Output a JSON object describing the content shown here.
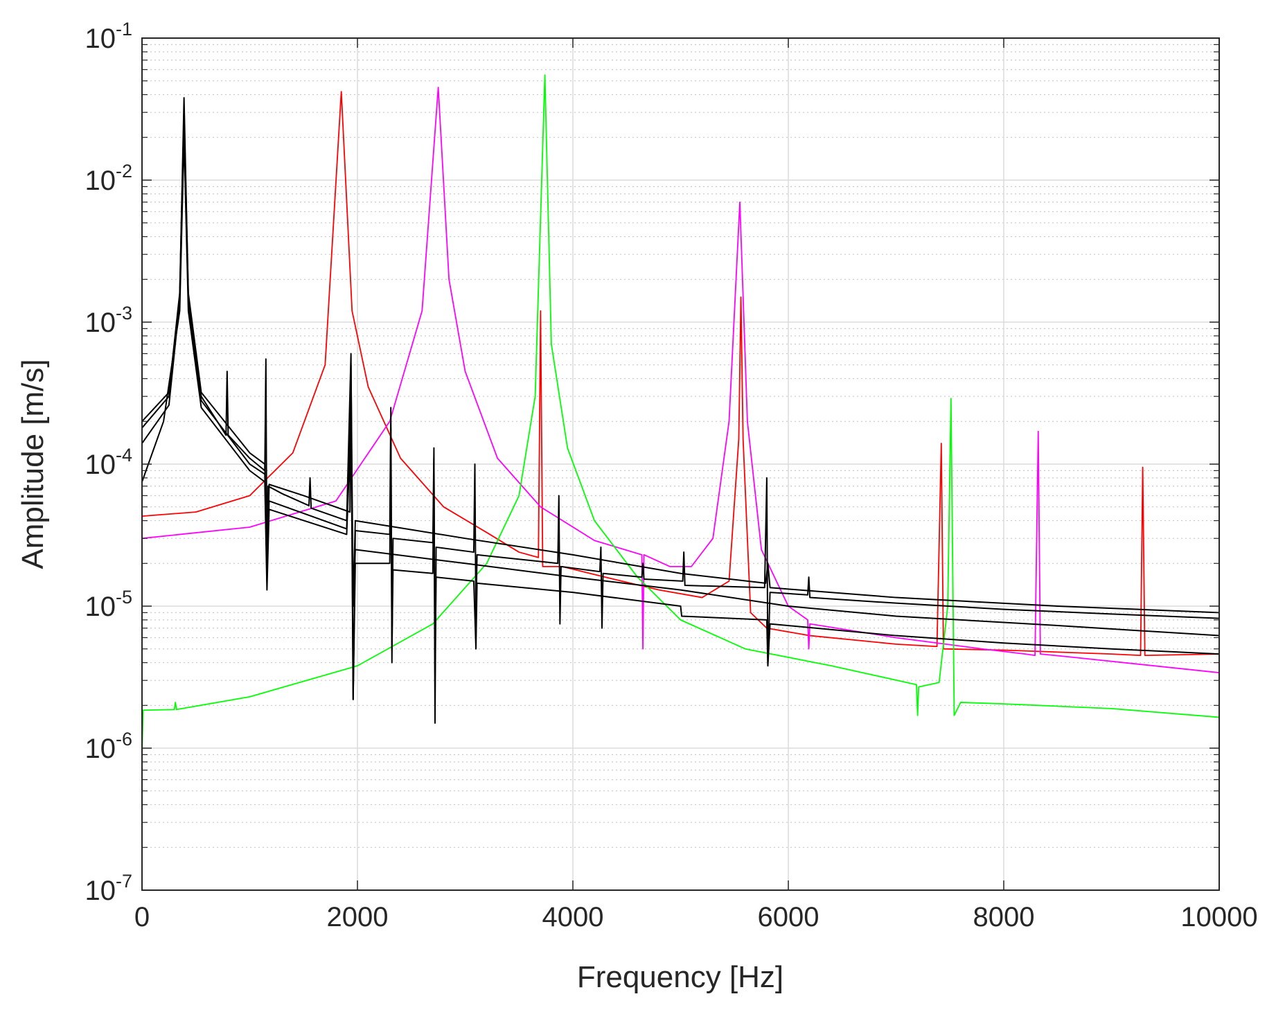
{
  "chart_data": {
    "type": "line",
    "title": "",
    "xlabel": "Frequency [Hz]",
    "ylabel": "Amplitude [m/s]",
    "xscale": "linear",
    "yscale": "log",
    "xlim": [
      0,
      10000
    ],
    "ylim": [
      1e-07,
      0.1
    ],
    "grid": true,
    "minor_grid": true,
    "legend": "none",
    "x_ticks": [
      {
        "value": 0,
        "label": "0"
      },
      {
        "value": 2000,
        "label": "2000"
      },
      {
        "value": 4000,
        "label": "4000"
      },
      {
        "value": 6000,
        "label": "6000"
      },
      {
        "value": 8000,
        "label": "8000"
      },
      {
        "value": 10000,
        "label": "10000"
      }
    ],
    "y_ticks": [
      {
        "value": 1e-07,
        "base": "10",
        "exp": "-7"
      },
      {
        "value": 1e-06,
        "base": "10",
        "exp": "-6"
      },
      {
        "value": 1e-05,
        "base": "10",
        "exp": "-5"
      },
      {
        "value": 0.0001,
        "base": "10",
        "exp": "-4"
      },
      {
        "value": 0.001,
        "base": "10",
        "exp": "-3"
      },
      {
        "value": 0.01,
        "base": "10",
        "exp": "-2"
      },
      {
        "value": 0.1,
        "base": "10",
        "exp": "-1"
      }
    ],
    "series": [
      {
        "name": "red response",
        "color": "#ff0000",
        "points": [
          [
            0,
            4.3e-05
          ],
          [
            500,
            4.6e-05
          ],
          [
            1000,
            6e-05
          ],
          [
            1400,
            0.00012
          ],
          [
            1700,
            0.0005
          ],
          [
            1850,
            0.042
          ],
          [
            1950,
            0.0012
          ],
          [
            2100,
            0.00035
          ],
          [
            2400,
            0.00011
          ],
          [
            2800,
            5e-05
          ],
          [
            3200,
            3.3e-05
          ],
          [
            3500,
            2.4e-05
          ],
          [
            3680,
            2.2e-05
          ],
          [
            3700,
            0.0012
          ],
          [
            3720,
            1.9e-05
          ],
          [
            3900,
            1.9e-05
          ],
          [
            4300,
            1.6e-05
          ],
          [
            4800,
            1.3e-05
          ],
          [
            5200,
            1.15e-05
          ],
          [
            5450,
            1.5e-05
          ],
          [
            5540,
            0.00015
          ],
          [
            5560,
            0.0015
          ],
          [
            5580,
            0.00015
          ],
          [
            5650,
            9e-06
          ],
          [
            5800,
            7e-06
          ],
          [
            6200,
            6.2e-06
          ],
          [
            7000,
            5.4e-06
          ],
          [
            7380,
            5.2e-06
          ],
          [
            7420,
            0.00014
          ],
          [
            7440,
            5e-06
          ],
          [
            8000,
            4.9e-06
          ],
          [
            9000,
            4.6e-06
          ],
          [
            9270,
            4.5e-06
          ],
          [
            9290,
            9.5e-05
          ],
          [
            9310,
            4.5e-06
          ],
          [
            10000,
            4.6e-06
          ]
        ]
      },
      {
        "name": "magenta response",
        "color": "#ff00ff",
        "points": [
          [
            0,
            3e-05
          ],
          [
            1000,
            3.6e-05
          ],
          [
            1800,
            5.5e-05
          ],
          [
            2300,
            0.0002
          ],
          [
            2600,
            0.0012
          ],
          [
            2750,
            0.045
          ],
          [
            2850,
            0.002
          ],
          [
            3000,
            0.00045
          ],
          [
            3300,
            0.00011
          ],
          [
            3700,
            5e-05
          ],
          [
            4200,
            2.9e-05
          ],
          [
            4640,
            2.3e-05
          ],
          [
            4650,
            5e-06
          ],
          [
            4660,
            2.3e-05
          ],
          [
            4900,
            1.9e-05
          ],
          [
            5100,
            1.9e-05
          ],
          [
            5300,
            3e-05
          ],
          [
            5450,
            0.0002
          ],
          [
            5550,
            0.007
          ],
          [
            5620,
            0.0002
          ],
          [
            5750,
            2.5e-05
          ],
          [
            6000,
            1e-05
          ],
          [
            6180,
            8e-06
          ],
          [
            6190,
            5e-06
          ],
          [
            6200,
            7.5e-06
          ],
          [
            7000,
            6e-06
          ],
          [
            7800,
            5e-06
          ],
          [
            8200,
            4.6e-06
          ],
          [
            8290,
            4.5e-06
          ],
          [
            8320,
            0.00017
          ],
          [
            8340,
            4.6e-06
          ],
          [
            8600,
            4.4e-06
          ],
          [
            10000,
            3.4e-06
          ]
        ]
      },
      {
        "name": "green response",
        "color": "#00ff00",
        "points": [
          [
            0,
            9e-07
          ],
          [
            10,
            1.85e-06
          ],
          [
            300,
            1.87e-06
          ],
          [
            310,
            2.1e-06
          ],
          [
            320,
            1.87e-06
          ],
          [
            1000,
            2.3e-06
          ],
          [
            2000,
            3.8e-06
          ],
          [
            2700,
            7.5e-06
          ],
          [
            3200,
            2e-05
          ],
          [
            3500,
            6e-05
          ],
          [
            3650,
            0.0003
          ],
          [
            3740,
            0.055
          ],
          [
            3800,
            0.0007
          ],
          [
            3950,
            0.00013
          ],
          [
            4200,
            4e-05
          ],
          [
            4600,
            1.6e-05
          ],
          [
            5000,
            8e-06
          ],
          [
            5600,
            5e-06
          ],
          [
            6400,
            3.8e-06
          ],
          [
            7100,
            2.9e-06
          ],
          [
            7190,
            2.8e-06
          ],
          [
            7200,
            1.7e-06
          ],
          [
            7210,
            2.7e-06
          ],
          [
            7400,
            2.9e-06
          ],
          [
            7480,
            1e-05
          ],
          [
            7510,
            0.00029
          ],
          [
            7540,
            1.7e-06
          ],
          [
            7600,
            2.1e-06
          ],
          [
            8000,
            2.05e-06
          ],
          [
            9000,
            1.9e-06
          ],
          [
            10000,
            1.65e-06
          ]
        ]
      },
      {
        "name": "black response 1",
        "color": "#000000",
        "points": [
          [
            0,
            0.00018
          ],
          [
            250,
            0.0003
          ],
          [
            350,
            0.0015
          ],
          [
            390,
            0.038
          ],
          [
            430,
            0.0015
          ],
          [
            550,
            0.0003
          ],
          [
            780,
            0.00016
          ],
          [
            790,
            0.00045
          ],
          [
            800,
            0.00016
          ],
          [
            1000,
            0.00011
          ],
          [
            1140,
            9e-05
          ],
          [
            1150,
            0.00055
          ],
          [
            1160,
            1.5e-05
          ],
          [
            1170,
            7e-05
          ],
          [
            1300,
            6.2e-05
          ],
          [
            1550,
            5.1e-05
          ],
          [
            1560,
            8e-05
          ],
          [
            1570,
            4.9e-05
          ],
          [
            1900,
            4e-05
          ],
          [
            1940,
            0.0006
          ],
          [
            1960,
            2.2e-06
          ],
          [
            1980,
            3.4e-05
          ],
          [
            2300,
            3.2e-05
          ],
          [
            2310,
            0.00025
          ],
          [
            2320,
            4e-06
          ],
          [
            2330,
            3e-05
          ],
          [
            2700,
            2.8e-05
          ],
          [
            2710,
            0.00013
          ],
          [
            2720,
            1.5e-06
          ],
          [
            2730,
            2.6e-05
          ],
          [
            3080,
            2.4e-05
          ],
          [
            3090,
            0.0001
          ],
          [
            3100,
            8e-06
          ],
          [
            3110,
            2.3e-05
          ],
          [
            3860,
            2e-05
          ],
          [
            3870,
            6e-05
          ],
          [
            3880,
            7.5e-06
          ],
          [
            3890,
            1.9e-05
          ],
          [
            4250,
            1.75e-05
          ],
          [
            4260,
            2.6e-05
          ],
          [
            4270,
            7e-06
          ],
          [
            4280,
            1.7e-05
          ],
          [
            4640,
            1.6e-05
          ],
          [
            4650,
            2e-05
          ],
          [
            4660,
            1.55e-05
          ],
          [
            5020,
            1.5e-05
          ],
          [
            5030,
            2.4e-05
          ],
          [
            5040,
            1.4e-05
          ],
          [
            5780,
            1.35e-05
          ],
          [
            5800,
            8e-05
          ],
          [
            5810,
            3.8e-06
          ],
          [
            5830,
            1.25e-05
          ],
          [
            6180,
            1.2e-05
          ],
          [
            6190,
            1.6e-05
          ],
          [
            6200,
            1.15e-05
          ],
          [
            7000,
            1.05e-05
          ],
          [
            8000,
            9.5e-06
          ],
          [
            9000,
            8.8e-06
          ],
          [
            10000,
            8.2e-06
          ]
        ]
      },
      {
        "name": "black response 2",
        "color": "#000000",
        "points": [
          [
            0,
            0.0002
          ],
          [
            250,
            0.00032
          ],
          [
            350,
            0.0016
          ],
          [
            390,
            0.03
          ],
          [
            430,
            0.0016
          ],
          [
            550,
            0.00032
          ],
          [
            1000,
            0.00012
          ],
          [
            1140,
            0.0001
          ],
          [
            1160,
            1.5e-05
          ],
          [
            1180,
            7.2e-05
          ],
          [
            1500,
            6e-05
          ],
          [
            1930,
            4.6e-05
          ],
          [
            1940,
            0.0005
          ],
          [
            1960,
            1e-05
          ],
          [
            1980,
            4e-05
          ],
          [
            3000,
            3e-05
          ],
          [
            4000,
            2.3e-05
          ],
          [
            5000,
            1.7e-05
          ],
          [
            5790,
            1.45e-05
          ],
          [
            5810,
            2e-05
          ],
          [
            5830,
            1.35e-05
          ],
          [
            7000,
            1.15e-05
          ],
          [
            8500,
            1e-05
          ],
          [
            10000,
            9e-06
          ]
        ]
      },
      {
        "name": "black response 3",
        "color": "#000000",
        "points": [
          [
            0,
            0.00014
          ],
          [
            250,
            0.00026
          ],
          [
            350,
            0.0014
          ],
          [
            390,
            0.025
          ],
          [
            430,
            0.0014
          ],
          [
            550,
            0.00028
          ],
          [
            1000,
            0.0001
          ],
          [
            1140,
            8.5e-05
          ],
          [
            1160,
            1.6e-05
          ],
          [
            1180,
            5.5e-05
          ],
          [
            1900,
            3.5e-05
          ],
          [
            1940,
            0.0003
          ],
          [
            1960,
            2.2e-06
          ],
          [
            1980,
            2e-05
          ],
          [
            2300,
            2e-05
          ],
          [
            2310,
            0.00018
          ],
          [
            2320,
            5e-06
          ],
          [
            2330,
            1.8e-05
          ],
          [
            2700,
            1.7e-05
          ],
          [
            2710,
            0.00011
          ],
          [
            2720,
            3e-06
          ],
          [
            2730,
            1.6e-05
          ],
          [
            3080,
            1.5e-05
          ],
          [
            3100,
            5e-06
          ],
          [
            3110,
            1.45e-05
          ],
          [
            4000,
            1.25e-05
          ],
          [
            5000,
            1e-05
          ],
          [
            5010,
            8.5e-06
          ],
          [
            5800,
            8e-06
          ],
          [
            5810,
            3.8e-06
          ],
          [
            5830,
            7.5e-06
          ],
          [
            7000,
            6.2e-06
          ],
          [
            8000,
            5.5e-06
          ],
          [
            9000,
            5e-06
          ],
          [
            10000,
            4.6e-06
          ]
        ]
      },
      {
        "name": "black response 4",
        "color": "#000000",
        "points": [
          [
            0,
            7.5e-05
          ],
          [
            200,
            0.0002
          ],
          [
            350,
            0.0012
          ],
          [
            390,
            0.02
          ],
          [
            430,
            0.0012
          ],
          [
            550,
            0.00025
          ],
          [
            1000,
            9e-05
          ],
          [
            1140,
            7.5e-05
          ],
          [
            1160,
            1.3e-05
          ],
          [
            1180,
            4.8e-05
          ],
          [
            1900,
            3.2e-05
          ],
          [
            1940,
            0.0002
          ],
          [
            1960,
            1e-05
          ],
          [
            1980,
            2.5e-05
          ],
          [
            3000,
            2e-05
          ],
          [
            4000,
            1.6e-05
          ],
          [
            5000,
            1.3e-05
          ],
          [
            6000,
            1e-05
          ],
          [
            7000,
            8.5e-06
          ],
          [
            8500,
            7.3e-06
          ],
          [
            10000,
            6.2e-06
          ]
        ]
      }
    ]
  }
}
